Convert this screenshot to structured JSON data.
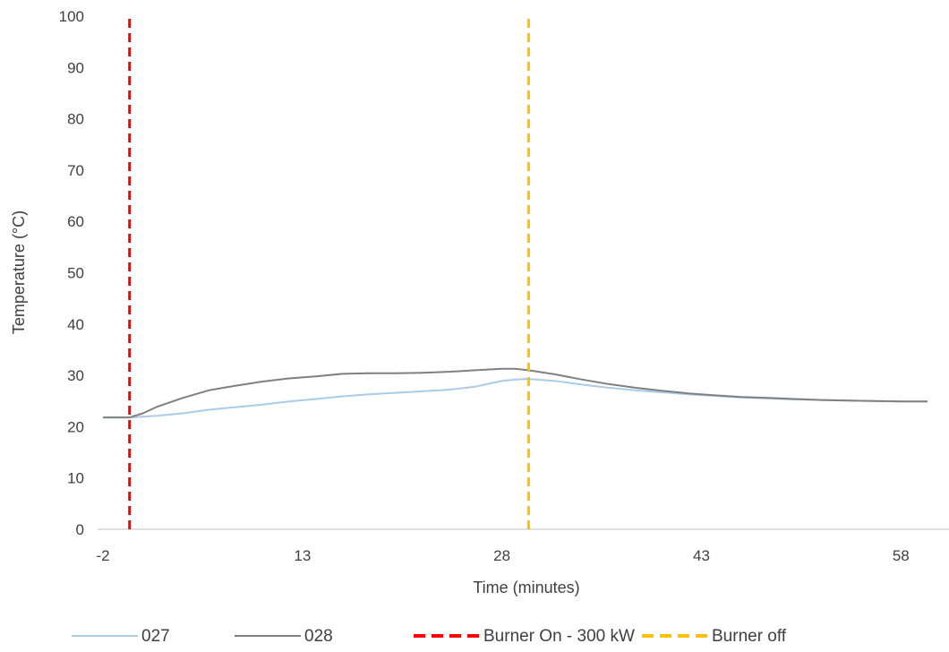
{
  "chart_data": {
    "type": "line",
    "title": "",
    "xlabel": "Time (minutes)",
    "ylabel": "Temperature (°C)",
    "xlim": [
      -2,
      60
    ],
    "ylim": [
      0,
      100
    ],
    "x_ticks": [
      -2,
      13,
      28,
      43,
      58
    ],
    "y_ticks": [
      0,
      10,
      20,
      30,
      40,
      50,
      60,
      70,
      80,
      90,
      100
    ],
    "grid": false,
    "legend_position": "bottom",
    "series": [
      {
        "name": "027",
        "color": "#a9cce8",
        "x": [
          -2,
          0,
          2,
          4,
          6,
          8,
          10,
          12,
          14,
          16,
          18,
          20,
          22,
          24,
          26,
          28,
          29,
          30,
          32,
          34,
          36,
          38,
          40,
          42,
          44,
          46,
          48,
          50,
          52,
          54,
          56,
          58,
          60
        ],
        "y": [
          21.8,
          21.8,
          22.1,
          22.6,
          23.3,
          23.8,
          24.3,
          24.9,
          25.4,
          25.9,
          26.3,
          26.6,
          26.9,
          27.2,
          27.8,
          28.9,
          29.2,
          29.3,
          28.9,
          28.2,
          27.6,
          27.1,
          26.7,
          26.3,
          26.0,
          25.7,
          25.5,
          25.3,
          25.2,
          25.1,
          25.0,
          24.9,
          24.9
        ]
      },
      {
        "name": "028",
        "color": "#808080",
        "x": [
          -2,
          0,
          1,
          2,
          4,
          6,
          8,
          10,
          12,
          14,
          16,
          18,
          20,
          22,
          24,
          26,
          28,
          29,
          30,
          32,
          34,
          36,
          38,
          40,
          42,
          44,
          46,
          48,
          50,
          52,
          54,
          56,
          58,
          60
        ],
        "y": [
          21.8,
          21.8,
          22.6,
          23.8,
          25.6,
          27.1,
          28.0,
          28.8,
          29.4,
          29.8,
          30.3,
          30.4,
          30.4,
          30.5,
          30.7,
          31.0,
          31.3,
          31.3,
          31.0,
          30.2,
          29.2,
          28.3,
          27.6,
          27.0,
          26.5,
          26.1,
          25.8,
          25.6,
          25.4,
          25.2,
          25.1,
          25.0,
          24.9,
          24.9
        ]
      },
      {
        "name": "Burner On - 300 kW",
        "color": "#ff0000",
        "dashed": true,
        "x": [
          0,
          0
        ],
        "y": [
          0,
          100
        ]
      },
      {
        "name": "Burner off",
        "color": "#ffc000",
        "dashed": true,
        "x": [
          30,
          30
        ],
        "y": [
          0,
          100
        ]
      }
    ]
  }
}
